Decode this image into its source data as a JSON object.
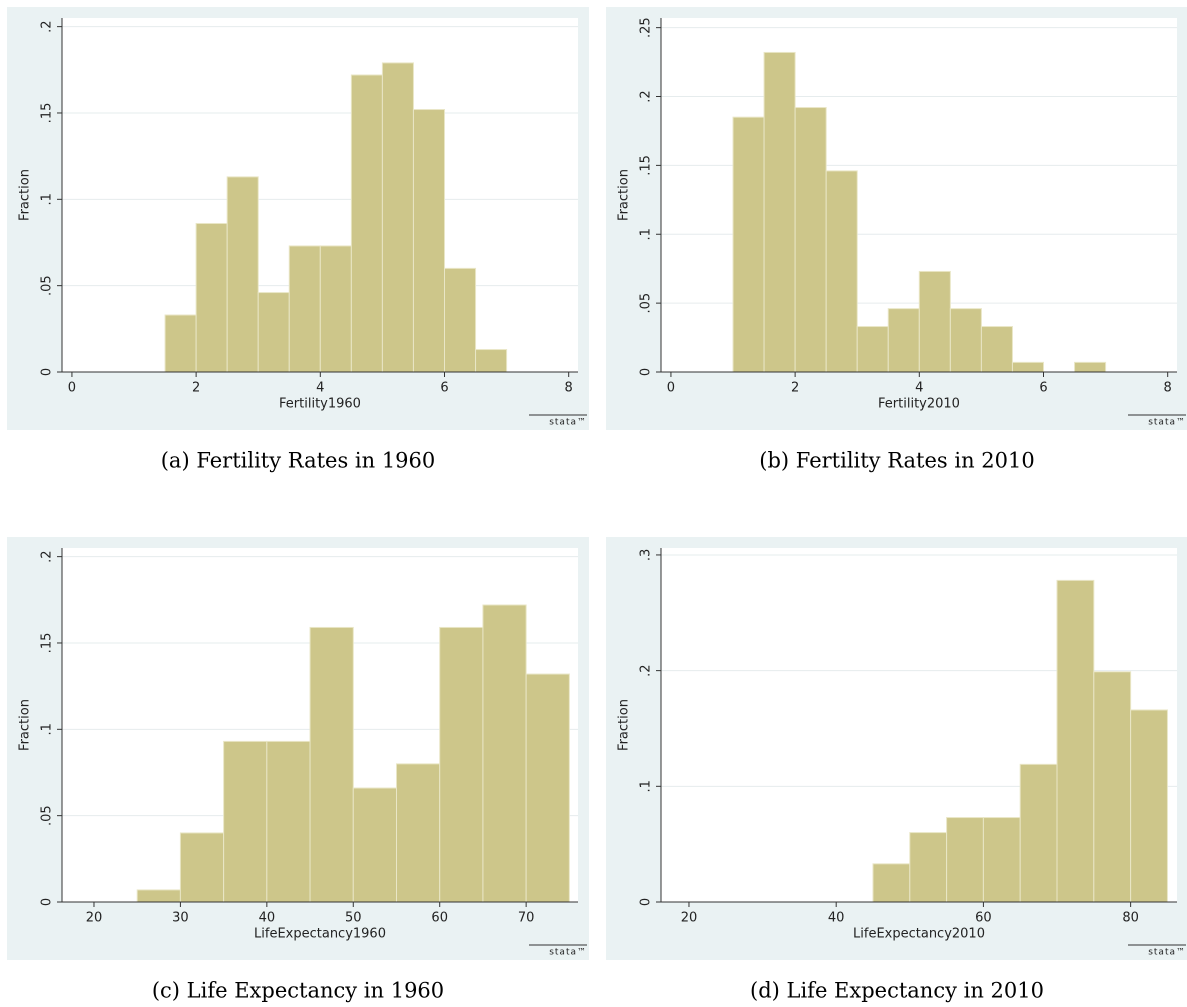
{
  "chart_data": [
    {
      "type": "histogram",
      "caption": "(a)  Fertility Rates in 1960",
      "x_label": "Fertility1960",
      "y_label": "Fraction",
      "logo": "stata™",
      "bins": [
        1.5,
        2,
        2.5,
        3,
        3.5,
        4,
        4.5,
        5,
        5.5,
        6,
        6.5,
        7
      ],
      "values": [
        0.033,
        0.086,
        0.113,
        0.046,
        0.073,
        0.073,
        0.172,
        0.179,
        0.152,
        0.06,
        0.013
      ],
      "color": "#cdc68a",
      "xlim": [
        -0.16,
        8.15
      ],
      "ylim": [
        0,
        0.205
      ],
      "xticks": [
        0,
        2,
        4,
        6,
        8
      ],
      "yticks": [
        0,
        {
          "value": 0.05,
          "label": ".05"
        },
        {
          "value": 0.1,
          "label": ".1"
        },
        {
          "value": 0.15,
          "label": ".15"
        },
        {
          "value": 0.2,
          "label": ".2"
        }
      ],
      "grid": true
    },
    {
      "type": "histogram",
      "caption": "(b)  Fertility Rates in 2010",
      "x_label": "Fertility2010",
      "y_label": "Fraction",
      "logo": "stata™",
      "bins": [
        1,
        1.5,
        2,
        2.5,
        3,
        3.5,
        4,
        4.5,
        5,
        5.5,
        6,
        6.5,
        7
      ],
      "values": [
        0.185,
        0.232,
        0.192,
        0.146,
        0.033,
        0.046,
        0.073,
        0.046,
        0.033,
        0.007,
        0,
        0.007
      ],
      "color": "#cdc68a",
      "xlim": [
        -0.16,
        8.15
      ],
      "ylim": [
        0,
        0.257
      ],
      "xticks": [
        0,
        2,
        4,
        6,
        8
      ],
      "yticks": [
        0,
        {
          "value": 0.05,
          "label": ".05"
        },
        {
          "value": 0.1,
          "label": ".1"
        },
        {
          "value": 0.15,
          "label": ".15"
        },
        {
          "value": 0.2,
          "label": ".2"
        },
        {
          "value": 0.25,
          "label": ".25"
        }
      ],
      "grid": true
    },
    {
      "type": "histogram",
      "caption": "(c)  Life Expectancy in 1960",
      "x_label": "LifeExpectancy1960",
      "y_label": "Fraction",
      "logo": "stata™",
      "bins": [
        25,
        30,
        35,
        40,
        45,
        50,
        55,
        60,
        65,
        70,
        75
      ],
      "values": [
        0.007,
        0.04,
        0.093,
        0.093,
        0.159,
        0.066,
        0.08,
        0.159,
        0.172,
        0.132
      ],
      "color": "#cdc68a",
      "xlim": [
        16.3,
        76.0
      ],
      "ylim": [
        0,
        0.205
      ],
      "xticks": [
        20,
        30,
        40,
        50,
        60,
        70
      ],
      "yticks": [
        0,
        {
          "value": 0.05,
          "label": ".05"
        },
        {
          "value": 0.1,
          "label": ".1"
        },
        {
          "value": 0.15,
          "label": ".15"
        },
        {
          "value": 0.2,
          "label": ".2"
        }
      ],
      "grid": true
    },
    {
      "type": "histogram",
      "caption": "(d)  Life Expectancy in 2010",
      "x_label": "LifeExpectancy2010",
      "y_label": "Fraction",
      "logo": "stata™",
      "bins": [
        45,
        50,
        55,
        60,
        65,
        70,
        75,
        80,
        85
      ],
      "values": [
        0.033,
        0.06,
        0.073,
        0.073,
        0.119,
        0.278,
        0.199,
        0.166
      ],
      "color": "#cdc68a",
      "xlim": [
        16.2,
        86.3
      ],
      "ylim": [
        0,
        0.306
      ],
      "xticks": [
        20,
        40,
        60,
        80
      ],
      "yticks": [
        0,
        {
          "value": 0.1,
          "label": ".1"
        },
        {
          "value": 0.2,
          "label": ".2"
        },
        {
          "value": 0.3,
          "label": ".3"
        }
      ],
      "grid": true
    }
  ]
}
